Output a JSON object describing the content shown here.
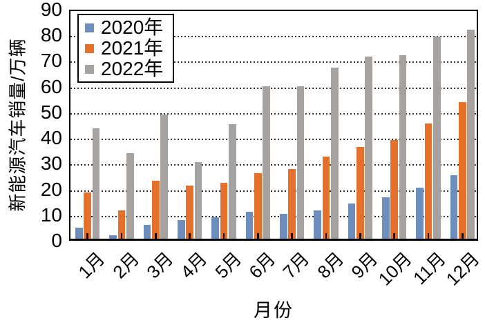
{
  "chart_data": {
    "type": "bar",
    "title": "",
    "xlabel": "月份",
    "ylabel": "新能源汽车销量/万辆",
    "categories": [
      "1月",
      "2月",
      "3月",
      "4月",
      "5月",
      "6月",
      "7月",
      "8月",
      "9月",
      "10月",
      "11月",
      "12月"
    ],
    "series": [
      {
        "name": "2020年",
        "color": "#6d8ebd",
        "values": [
          4.4,
          1.3,
          5.5,
          7.2,
          8.2,
          10.4,
          9.8,
          10.9,
          13.8,
          16.0,
          20.0,
          24.8
        ]
      },
      {
        "name": "2021年",
        "color": "#e5702c",
        "values": [
          17.9,
          11.0,
          22.6,
          20.6,
          21.7,
          25.6,
          27.1,
          32.1,
          35.7,
          38.3,
          45.0,
          53.1
        ]
      },
      {
        "name": "2022年",
        "color": "#a5a29f",
        "values": [
          43.1,
          33.4,
          48.4,
          29.9,
          44.7,
          59.5,
          59.3,
          66.6,
          70.8,
          71.4,
          78.6,
          81.4
        ]
      }
    ],
    "ylim": [
      0,
      90
    ],
    "ytick_step": 10,
    "yticks": [
      "0",
      "10",
      "20",
      "30",
      "40",
      "50",
      "60",
      "70",
      "80",
      "90"
    ],
    "grid": "horizontal-dotted",
    "legend_position": "inside-top-left",
    "plot_border_color": "#000000",
    "grid_color": "#2e2e2e",
    "background_color": "#ffffff"
  }
}
